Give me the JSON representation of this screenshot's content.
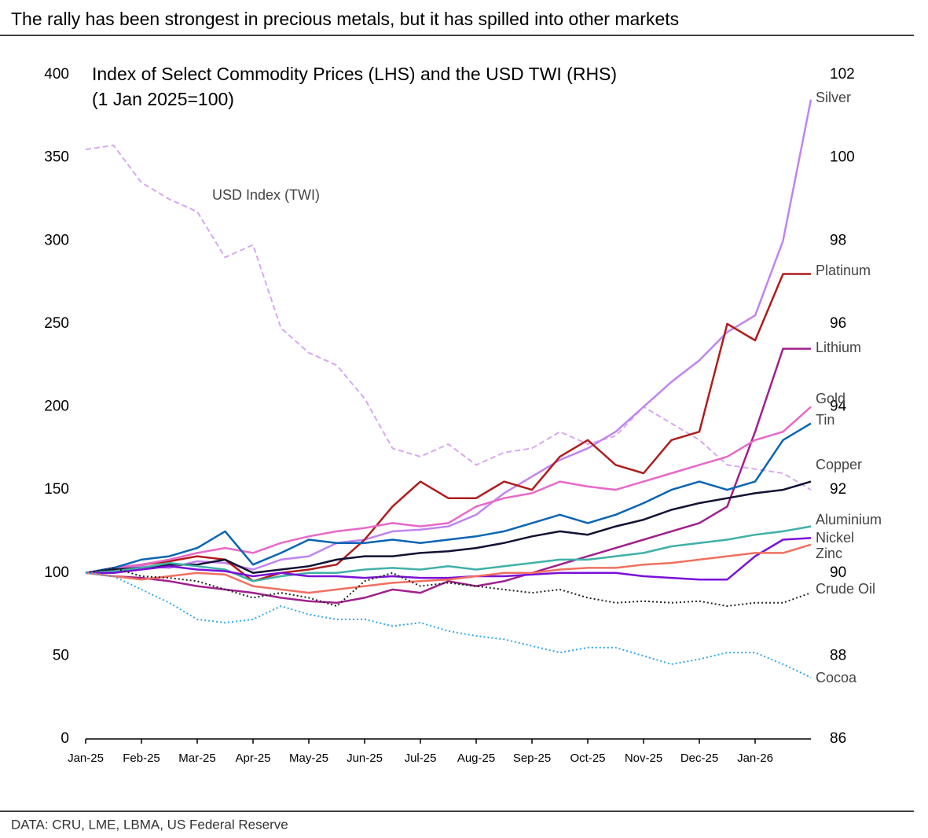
{
  "header": {
    "title": "The rally has been strongest in precious metals, but it has spilled into other markets"
  },
  "footer": {
    "source": "DATA: CRU, LME, LBMA, US Federal Reserve"
  },
  "chart_data": {
    "type": "line",
    "title": "Index of Select Commodity Prices (LHS) and the USD TWI (RHS)",
    "subtitle": "(1 Jan 2025=100)",
    "categories": [
      "Jan-25",
      null,
      "Feb-25",
      null,
      "Mar-25",
      null,
      "Apr-25",
      null,
      "May-25",
      null,
      "Jun-25",
      null,
      "Jul-25",
      null,
      "Aug-25",
      null,
      "Sep-25",
      null,
      "Oct-25",
      null,
      "Nov-25",
      null,
      "Dec-25",
      null,
      "Jan-26",
      null,
      null
    ],
    "ylim": [
      0,
      400
    ],
    "yticks": [
      0,
      50,
      100,
      150,
      200,
      250,
      300,
      350,
      400
    ],
    "y2lim": [
      86,
      102
    ],
    "y2ticks": [
      86,
      88,
      90,
      92,
      94,
      96,
      98,
      100,
      102
    ],
    "grid": false,
    "series": [
      {
        "name": "USD Index (TWI)",
        "color": "#d8a8f0",
        "style": "dashed",
        "axis": "y2",
        "values": [
          100.2,
          100.3,
          99.4,
          99.0,
          98.7,
          97.6,
          97.9,
          95.9,
          95.3,
          95.0,
          94.2,
          93.0,
          92.8,
          93.1,
          92.6,
          92.9,
          93.0,
          93.4,
          93.1,
          93.3,
          94.0,
          93.6,
          93.2,
          92.6,
          92.5,
          92.4,
          92.0
        ]
      },
      {
        "name": "Silver",
        "color": "#c084f0",
        "style": "solid",
        "values": [
          100,
          102,
          104,
          103,
          107,
          106,
          102,
          108,
          110,
          118,
          120,
          125,
          126,
          128,
          135,
          148,
          158,
          168,
          175,
          185,
          200,
          215,
          228,
          245,
          255,
          300,
          385
        ]
      },
      {
        "name": "Platinum",
        "color": "#b01c1c",
        "style": "solid",
        "values": [
          100,
          103,
          105,
          107,
          110,
          108,
          95,
          100,
          102,
          105,
          120,
          140,
          155,
          145,
          145,
          155,
          150,
          170,
          180,
          165,
          160,
          180,
          185,
          250,
          240,
          280,
          280
        ]
      },
      {
        "name": "Lithium",
        "color": "#a0208c",
        "style": "solid",
        "values": [
          100,
          98,
          97,
          95,
          92,
          90,
          88,
          85,
          83,
          82,
          85,
          90,
          88,
          95,
          92,
          95,
          100,
          105,
          110,
          115,
          120,
          125,
          130,
          140,
          185,
          235,
          235
        ]
      },
      {
        "name": "Gold",
        "color": "#e868c8",
        "style": "solid",
        "values": [
          100,
          103,
          105,
          108,
          112,
          115,
          112,
          118,
          122,
          125,
          127,
          130,
          128,
          130,
          140,
          145,
          148,
          155,
          152,
          150,
          155,
          160,
          165,
          170,
          180,
          185,
          200
        ]
      },
      {
        "name": "Tin",
        "color": "#0a64b4",
        "style": "solid",
        "values": [
          100,
          103,
          108,
          110,
          115,
          125,
          105,
          112,
          120,
          118,
          118,
          120,
          118,
          120,
          122,
          125,
          130,
          135,
          130,
          135,
          142,
          150,
          155,
          150,
          155,
          180,
          190
        ]
      },
      {
        "name": "Copper",
        "color": "#111133",
        "style": "solid",
        "values": [
          100,
          102,
          103,
          105,
          105,
          108,
          100,
          102,
          104,
          108,
          110,
          110,
          112,
          113,
          115,
          118,
          122,
          125,
          123,
          128,
          132,
          138,
          142,
          145,
          148,
          150,
          155
        ]
      },
      {
        "name": "Aluminium",
        "color": "#40b0a8",
        "style": "solid",
        "values": [
          100,
          101,
          103,
          106,
          104,
          102,
          95,
          98,
          100,
          100,
          102,
          103,
          102,
          104,
          102,
          104,
          106,
          108,
          108,
          110,
          112,
          116,
          118,
          120,
          123,
          125,
          128
        ]
      },
      {
        "name": "Nickel",
        "color": "#7a10d8",
        "style": "solid",
        "values": [
          100,
          100,
          102,
          104,
          102,
          101,
          98,
          100,
          98,
          98,
          97,
          98,
          97,
          97,
          98,
          98,
          99,
          100,
          100,
          100,
          98,
          97,
          96,
          96,
          110,
          120,
          121
        ]
      },
      {
        "name": "Zinc",
        "color": "#f07060",
        "style": "solid",
        "values": [
          100,
          98,
          96,
          98,
          100,
          99,
          92,
          90,
          88,
          90,
          92,
          94,
          95,
          96,
          98,
          100,
          100,
          102,
          103,
          103,
          105,
          106,
          108,
          110,
          112,
          112,
          117
        ]
      },
      {
        "name": "Crude Oil",
        "color": "#222222",
        "style": "dotted",
        "values": [
          100,
          103,
          98,
          97,
          95,
          90,
          85,
          88,
          85,
          80,
          95,
          100,
          92,
          94,
          92,
          90,
          88,
          90,
          85,
          82,
          83,
          82,
          83,
          80,
          82,
          82,
          88
        ]
      },
      {
        "name": "Cocoa",
        "color": "#30a8e8",
        "style": "dotted",
        "values": [
          100,
          98,
          90,
          82,
          72,
          70,
          72,
          80,
          75,
          72,
          72,
          68,
          70,
          65,
          62,
          60,
          56,
          52,
          55,
          55,
          50,
          45,
          48,
          52,
          52,
          45,
          37
        ]
      }
    ]
  }
}
